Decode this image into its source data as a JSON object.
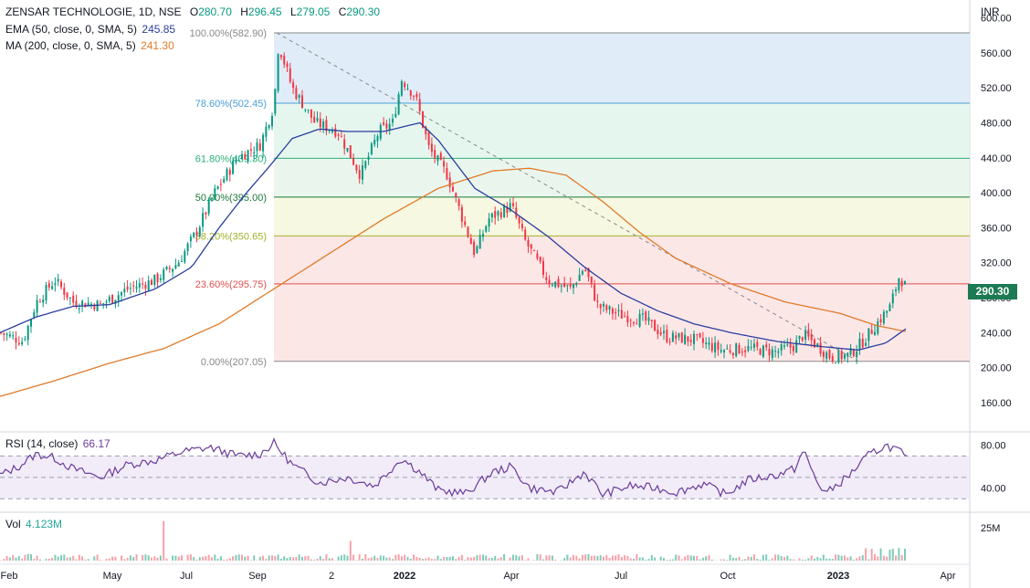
{
  "header": {
    "symbol": "ZENSAR TECHNOLOGIE, 1D, NSE",
    "open_label": "O",
    "open": "280.70",
    "high_label": "H",
    "high": "296.45",
    "low_label": "L",
    "low": "279.05",
    "close_label": "C",
    "close": "290.30"
  },
  "indicators": {
    "ema": {
      "label": "EMA (50, close, 0, SMA, 5)",
      "value": "245.85",
      "color": "#2a3f9e"
    },
    "ma": {
      "label": "MA (200, close, 0, SMA, 5)",
      "value": "241.30",
      "color": "#e07b2a"
    },
    "rsi": {
      "label": "RSI (14, close)",
      "value": "66.17",
      "color": "#6a3d9a"
    },
    "vol": {
      "label": "Vol",
      "value": "4.123M",
      "color": "#26a69a"
    }
  },
  "price_axis": {
    "currency": "INR",
    "current_price_label": "290.30"
  },
  "chart_data": {
    "type": "candlestick",
    "x_ticks": [
      "Feb",
      "May",
      "Jul",
      "Sep",
      "2",
      "2022",
      "Apr",
      "Jul",
      "Oct",
      "2023",
      "Apr"
    ],
    "price_ylim": [
      140,
      610
    ],
    "price_ticks": [
      "600.00",
      "560.00",
      "520.00",
      "480.00",
      "440.00",
      "400.00",
      "360.00",
      "320.00",
      "280.00",
      "240.00",
      "200.00",
      "160.00"
    ],
    "fibonacci": [
      {
        "label": "100.00%(582.90)",
        "price": 582.9,
        "fill": "#eeeeee",
        "line": "#888888"
      },
      {
        "label": "78.60%(502.45)",
        "price": 502.45,
        "fill": "#dbeaf7",
        "line": "#4a9fd8"
      },
      {
        "label": "61.80%(439.30)",
        "price": 439.3,
        "fill": "#e0f5ec",
        "line": "#2bb07a"
      },
      {
        "label": "50.00%(395.00)",
        "price": 395.0,
        "fill": "#e6f4ea",
        "line": "#1b7a3a"
      },
      {
        "label": "38.20%(350.65)",
        "price": 350.65,
        "fill": "#f6f7dd",
        "line": "#a3b02a"
      },
      {
        "label": "23.60%(295.75)",
        "price": 295.75,
        "fill": "#fbe3e3",
        "line": "#e05050"
      },
      {
        "label": "0.00%(207.05)",
        "price": 207.05,
        "fill": "#fbe3e3",
        "line": "#888888"
      }
    ],
    "trendline": {
      "from": 582.9,
      "to": 207.05
    },
    "close_series_anchors": [
      [
        0,
        240
      ],
      [
        25,
        230
      ],
      [
        40,
        275
      ],
      [
        60,
        300
      ],
      [
        80,
        275
      ],
      [
        110,
        272
      ],
      [
        140,
        290
      ],
      [
        170,
        300
      ],
      [
        195,
        320
      ],
      [
        215,
        355
      ],
      [
        235,
        400
      ],
      [
        260,
        440
      ],
      [
        285,
        455
      ],
      [
        300,
        500
      ],
      [
        305,
        570
      ],
      [
        320,
        520
      ],
      [
        345,
        480
      ],
      [
        370,
        470
      ],
      [
        395,
        420
      ],
      [
        415,
        470
      ],
      [
        430,
        480
      ],
      [
        440,
        530
      ],
      [
        455,
        510
      ],
      [
        470,
        450
      ],
      [
        490,
        420
      ],
      [
        505,
        375
      ],
      [
        520,
        330
      ],
      [
        535,
        370
      ],
      [
        560,
        385
      ],
      [
        575,
        345
      ],
      [
        600,
        300
      ],
      [
        625,
        290
      ],
      [
        640,
        315
      ],
      [
        655,
        270
      ],
      [
        680,
        260
      ],
      [
        705,
        255
      ],
      [
        730,
        235
      ],
      [
        760,
        232
      ],
      [
        790,
        220
      ],
      [
        820,
        222
      ],
      [
        850,
        218
      ],
      [
        870,
        225
      ],
      [
        880,
        238
      ],
      [
        895,
        225
      ],
      [
        910,
        212
      ],
      [
        930,
        214
      ],
      [
        945,
        230
      ],
      [
        960,
        250
      ],
      [
        975,
        270
      ],
      [
        985,
        305
      ],
      [
        993,
        290
      ]
    ],
    "ema_anchors": [
      [
        0,
        240
      ],
      [
        40,
        258
      ],
      [
        80,
        270
      ],
      [
        120,
        272
      ],
      [
        170,
        290
      ],
      [
        210,
        315
      ],
      [
        240,
        360
      ],
      [
        270,
        400
      ],
      [
        295,
        430
      ],
      [
        320,
        462
      ],
      [
        350,
        473
      ],
      [
        380,
        470
      ],
      [
        420,
        470
      ],
      [
        460,
        480
      ],
      [
        480,
        460
      ],
      [
        520,
        405
      ],
      [
        560,
        380
      ],
      [
        600,
        350
      ],
      [
        640,
        315
      ],
      [
        680,
        285
      ],
      [
        720,
        265
      ],
      [
        760,
        250
      ],
      [
        800,
        240
      ],
      [
        850,
        230
      ],
      [
        900,
        224
      ],
      [
        940,
        220
      ],
      [
        970,
        228
      ],
      [
        993,
        245
      ]
    ],
    "ma_anchors": [
      [
        0,
        167
      ],
      [
        60,
        185
      ],
      [
        120,
        205
      ],
      [
        180,
        222
      ],
      [
        240,
        250
      ],
      [
        300,
        290
      ],
      [
        360,
        330
      ],
      [
        420,
        370
      ],
      [
        480,
        405
      ],
      [
        540,
        425
      ],
      [
        580,
        428
      ],
      [
        620,
        420
      ],
      [
        660,
        390
      ],
      [
        700,
        355
      ],
      [
        740,
        325
      ],
      [
        800,
        296
      ],
      [
        860,
        275
      ],
      [
        920,
        262
      ],
      [
        960,
        248
      ],
      [
        993,
        241
      ]
    ],
    "rsi": {
      "ylim": [
        20,
        90
      ],
      "ticks": [
        "80.00",
        "40.00"
      ],
      "upper_band": 70,
      "lower_band": 30,
      "mid": 50,
      "anchors": [
        [
          0,
          52
        ],
        [
          20,
          60
        ],
        [
          40,
          72
        ],
        [
          60,
          68
        ],
        [
          80,
          58
        ],
        [
          110,
          50
        ],
        [
          140,
          62
        ],
        [
          170,
          66
        ],
        [
          200,
          74
        ],
        [
          230,
          78
        ],
        [
          260,
          70
        ],
        [
          285,
          72
        ],
        [
          300,
          82
        ],
        [
          320,
          62
        ],
        [
          350,
          45
        ],
        [
          380,
          50
        ],
        [
          410,
          42
        ],
        [
          440,
          68
        ],
        [
          460,
          55
        ],
        [
          480,
          38
        ],
        [
          510,
          35
        ],
        [
          540,
          55
        ],
        [
          560,
          60
        ],
        [
          580,
          40
        ],
        [
          610,
          36
        ],
        [
          640,
          55
        ],
        [
          660,
          34
        ],
        [
          690,
          42
        ],
        [
          720,
          40
        ],
        [
          740,
          36
        ],
        [
          770,
          44
        ],
        [
          795,
          34
        ],
        [
          820,
          48
        ],
        [
          850,
          52
        ],
        [
          870,
          58
        ],
        [
          880,
          75
        ],
        [
          895,
          45
        ],
        [
          905,
          35
        ],
        [
          930,
          52
        ],
        [
          950,
          70
        ],
        [
          970,
          80
        ],
        [
          985,
          75
        ],
        [
          993,
          66
        ]
      ]
    },
    "volume": {
      "tick": "25M",
      "spikes": [
        [
          180,
          24
        ],
        [
          384,
          12
        ]
      ],
      "base_max": 4
    }
  }
}
